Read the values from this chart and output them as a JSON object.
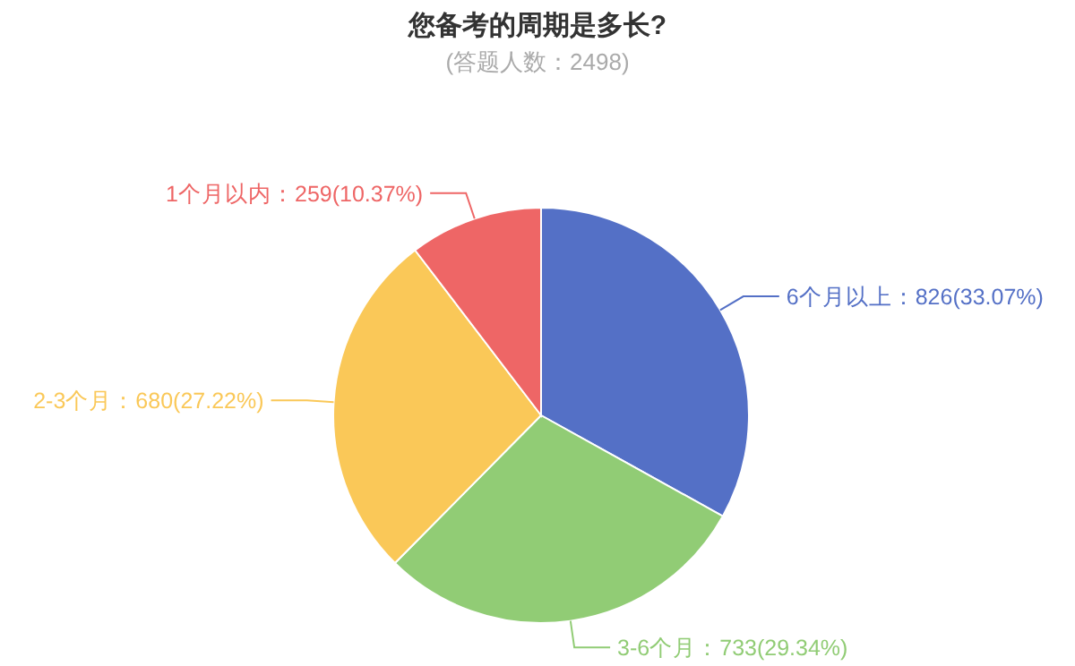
{
  "chart_data": {
    "type": "pie",
    "title": "您备考的周期是多长?",
    "subtitle": "(答题人数：2498)",
    "categories": [
      "6个月以上",
      "3-6个月",
      "2-3个月",
      "1个月以内"
    ],
    "values": [
      826,
      733,
      680,
      259
    ],
    "value_labels": [
      "826(33.07%)",
      "733(29.34%)",
      "680(27.22%)",
      "259(10.37%)"
    ],
    "colors": [
      "#5470c6",
      "#91cc75",
      "#fac858",
      "#ee6666"
    ]
  }
}
